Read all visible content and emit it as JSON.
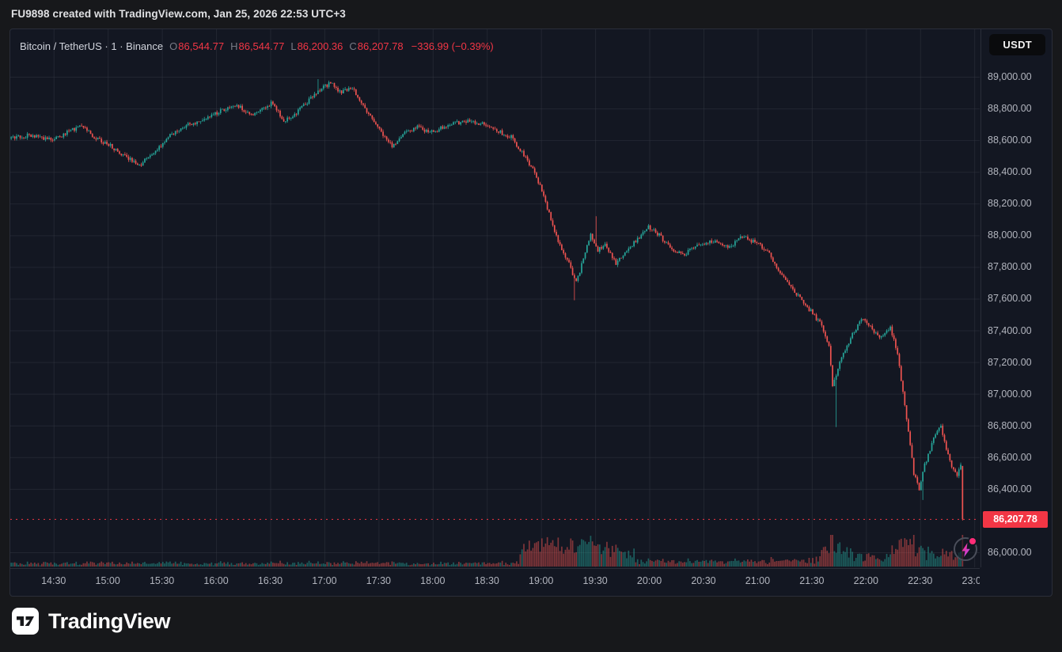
{
  "attribution": "FU9898 created with TradingView.com, Jan 25, 2026 22:53 UTC+3",
  "card": {
    "header": {
      "symbol": "Bitcoin / TetherUS · 1 · Binance",
      "ohlc": {
        "o_label": "O",
        "o": "86,544.77",
        "h_label": "H",
        "h": "86,544.77",
        "l_label": "L",
        "l": "86,200.36",
        "c_label": "C",
        "c": "86,207.78",
        "change": "−336.99 (−0.39%)"
      }
    },
    "currency_button": "USDT",
    "price_axis": {
      "labels": [
        {
          "t": "89,000.00",
          "v": 89000
        },
        {
          "t": "88,800.00",
          "v": 88800
        },
        {
          "t": "88,600.00",
          "v": 88600
        },
        {
          "t": "88,400.00",
          "v": 88400
        },
        {
          "t": "88,200.00",
          "v": 88200
        },
        {
          "t": "88,000.00",
          "v": 88000
        },
        {
          "t": "87,800.00",
          "v": 87800
        },
        {
          "t": "87,600.00",
          "v": 87600
        },
        {
          "t": "87,400.00",
          "v": 87400
        },
        {
          "t": "87,200.00",
          "v": 87200
        },
        {
          "t": "87,000.00",
          "v": 87000
        },
        {
          "t": "86,800.00",
          "v": 86800
        },
        {
          "t": "86,600.00",
          "v": 86600
        },
        {
          "t": "86,400.00",
          "v": 86400
        },
        {
          "t": "86,000.00",
          "v": 86000
        }
      ],
      "current_label": "86,207.78"
    },
    "time_axis": [
      {
        "t": "14:30",
        "m": 24
      },
      {
        "t": "15:00",
        "m": 54
      },
      {
        "t": "15:30",
        "m": 84
      },
      {
        "t": "16:00",
        "m": 114
      },
      {
        "t": "16:30",
        "m": 144
      },
      {
        "t": "17:00",
        "m": 174
      },
      {
        "t": "17:30",
        "m": 204
      },
      {
        "t": "18:00",
        "m": 234
      },
      {
        "t": "18:30",
        "m": 264
      },
      {
        "t": "19:00",
        "m": 294
      },
      {
        "t": "19:30",
        "m": 324
      },
      {
        "t": "20:00",
        "m": 354
      },
      {
        "t": "20:30",
        "m": 384
      },
      {
        "t": "21:00",
        "m": 414
      },
      {
        "t": "21:30",
        "m": 444
      },
      {
        "t": "22:00",
        "m": 474
      },
      {
        "t": "22:30",
        "m": 504
      },
      {
        "t": "23:00",
        "m": 534
      }
    ]
  },
  "footer": {
    "logo_text": "TradingView"
  },
  "colors": {
    "up": "#26a69a",
    "down": "#ef5350",
    "accent_red": "#f23645",
    "grid": "rgba(54,58,69,0.45)",
    "axis_text": "#b2b5be",
    "chart_bg": "#131722",
    "page_bg": "#17181b"
  },
  "chart_data": {
    "type": "candlestick",
    "title": "Bitcoin / TetherUS, 1, Binance",
    "pair": "BTCUSDT",
    "exchange": "Binance",
    "interval": "1 minute",
    "last_candle": {
      "open": 86544.77,
      "high": 86544.77,
      "low": 86200.36,
      "close": 86207.78
    },
    "change": -336.99,
    "change_percent": -0.39,
    "last_price": 86207.78,
    "y_axis": {
      "min": 86000,
      "max": 89000,
      "tick_step": 200,
      "quote": "USDT"
    },
    "x_axis": {
      "start_time": "14:06",
      "end_time": "23:00",
      "minutes_visible": 537,
      "tick_interval_minutes": 30
    },
    "candle_count": 528,
    "seed": 9898,
    "price_path_minute_price": [
      [
        0,
        88610
      ],
      [
        10,
        88630
      ],
      [
        24,
        88600
      ],
      [
        34,
        88660
      ],
      [
        40,
        88690
      ],
      [
        48,
        88610
      ],
      [
        54,
        88580
      ],
      [
        64,
        88500
      ],
      [
        72,
        88440
      ],
      [
        80,
        88520
      ],
      [
        90,
        88640
      ],
      [
        100,
        88700
      ],
      [
        110,
        88740
      ],
      [
        118,
        88790
      ],
      [
        126,
        88820
      ],
      [
        134,
        88760
      ],
      [
        140,
        88800
      ],
      [
        146,
        88840
      ],
      [
        152,
        88720
      ],
      [
        158,
        88760
      ],
      [
        166,
        88850
      ],
      [
        172,
        88920
      ],
      [
        178,
        88960
      ],
      [
        184,
        88900
      ],
      [
        190,
        88930
      ],
      [
        198,
        88780
      ],
      [
        206,
        88650
      ],
      [
        212,
        88560
      ],
      [
        218,
        88640
      ],
      [
        226,
        88680
      ],
      [
        234,
        88650
      ],
      [
        244,
        88700
      ],
      [
        254,
        88720
      ],
      [
        262,
        88700
      ],
      [
        270,
        88660
      ],
      [
        278,
        88620
      ],
      [
        284,
        88520
      ],
      [
        290,
        88420
      ],
      [
        296,
        88250
      ],
      [
        300,
        88100
      ],
      [
        304,
        87950
      ],
      [
        310,
        87820
      ],
      [
        314,
        87700
      ],
      [
        318,
        87850
      ],
      [
        322,
        88000
      ],
      [
        326,
        87900
      ],
      [
        330,
        87950
      ],
      [
        336,
        87820
      ],
      [
        342,
        87900
      ],
      [
        348,
        87980
      ],
      [
        354,
        88050
      ],
      [
        360,
        88000
      ],
      [
        366,
        87920
      ],
      [
        374,
        87880
      ],
      [
        382,
        87940
      ],
      [
        390,
        87960
      ],
      [
        398,
        87920
      ],
      [
        406,
        87990
      ],
      [
        414,
        87950
      ],
      [
        420,
        87900
      ],
      [
        426,
        87780
      ],
      [
        432,
        87700
      ],
      [
        438,
        87600
      ],
      [
        444,
        87520
      ],
      [
        450,
        87430
      ],
      [
        454,
        87300
      ],
      [
        456,
        87050
      ],
      [
        460,
        87200
      ],
      [
        466,
        87350
      ],
      [
        472,
        87480
      ],
      [
        476,
        87440
      ],
      [
        482,
        87350
      ],
      [
        488,
        87420
      ],
      [
        492,
        87250
      ],
      [
        495,
        87000
      ],
      [
        498,
        86750
      ],
      [
        501,
        86500
      ],
      [
        504,
        86400
      ],
      [
        507,
        86550
      ],
      [
        510,
        86650
      ],
      [
        513,
        86750
      ],
      [
        516,
        86800
      ],
      [
        519,
        86650
      ],
      [
        522,
        86550
      ],
      [
        525,
        86480
      ],
      [
        527,
        86545
      ],
      [
        528,
        86208
      ]
    ],
    "long_wicks": [
      {
        "m": 170,
        "high": 88985
      },
      {
        "m": 312,
        "low": 87590
      },
      {
        "m": 324,
        "high": 88120
      },
      {
        "m": 457,
        "low": 86790
      },
      {
        "m": 505,
        "low": 86330
      }
    ],
    "volume_spike_regions": [
      {
        "from": 282,
        "to": 345,
        "mult": 4.5
      },
      {
        "from": 346,
        "to": 447,
        "mult": 1.6
      },
      {
        "from": 448,
        "to": 465,
        "mult": 3.5
      },
      {
        "from": 466,
        "to": 528,
        "mult": 2.8
      }
    ]
  }
}
